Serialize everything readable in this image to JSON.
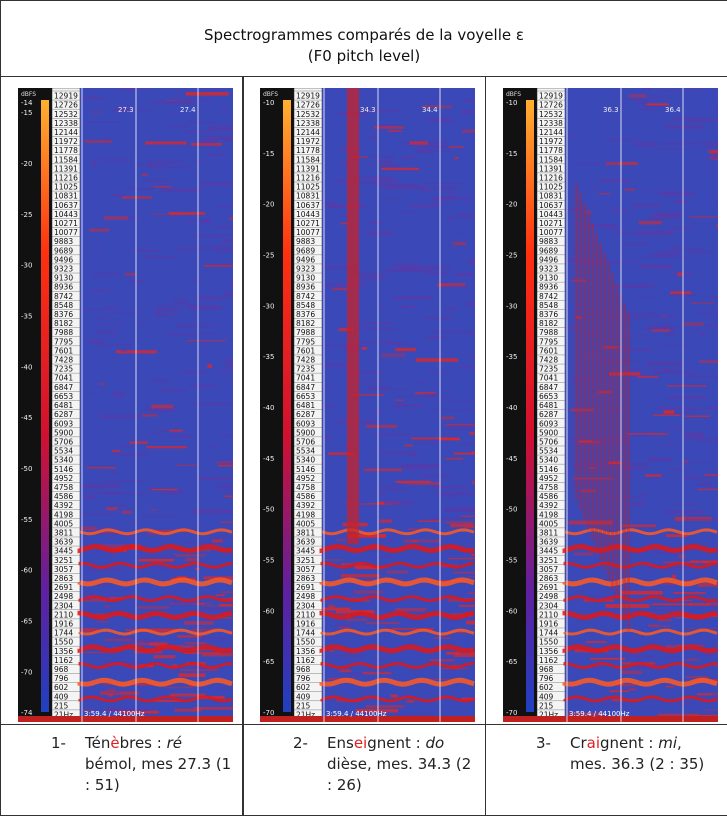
{
  "table": {
    "title": "Spectrogrammes comparés de la voyelle ɛ",
    "subtitle": "(F0 pitch level)",
    "frequency_labels": [
      "12919",
      "12726",
      "12532",
      "12338",
      "12144",
      "11972",
      "11778",
      "11584",
      "11391",
      "11216",
      "11025",
      "10831",
      "10637",
      "10443",
      "10271",
      "10077",
      "9883",
      "9689",
      "9496",
      "9323",
      "9130",
      "8936",
      "8742",
      "8548",
      "8376",
      "8182",
      "7988",
      "7795",
      "7601",
      "7428",
      "7235",
      "7041",
      "6847",
      "6653",
      "6481",
      "6287",
      "6093",
      "5900",
      "5706",
      "5534",
      "5340",
      "5146",
      "4952",
      "4758",
      "4586",
      "4392",
      "4198",
      "4005",
      "3811",
      "3639",
      "3445",
      "3251",
      "3057",
      "2863",
      "2691",
      "2498",
      "2304",
      "2110",
      "1916",
      "1744",
      "1550",
      "1356",
      "1162",
      "968",
      "796",
      "602",
      "409",
      "215",
      "21Hz"
    ],
    "scale_unit": "dBFS",
    "footer": "3:59.4 / 44100Hz",
    "panels": [
      {
        "db_ticks": [
          "-14",
          "-15",
          "-20",
          "-25",
          "-30",
          "-35",
          "-40",
          "-45",
          "-50",
          "-55",
          "-60",
          "-65",
          "-70",
          "-74"
        ],
        "times": [
          "27.3",
          "27.4"
        ],
        "caption": {
          "number": "1-",
          "runs": [
            {
              "text": "Tén",
              "style": "plain"
            },
            {
              "text": "è",
              "style": "red"
            },
            {
              "text": "bres : ",
              "style": "plain"
            },
            {
              "text": "ré",
              "style": "italic"
            },
            {
              "text": " bémol, mes 27.3 (1 : 51)",
              "style": "plain"
            }
          ]
        }
      },
      {
        "db_ticks": [
          "-10",
          "-15",
          "-20",
          "-25",
          "-30",
          "-35",
          "-40",
          "-45",
          "-50",
          "-55",
          "-60",
          "-65",
          "-70"
        ],
        "times": [
          "34.3",
          "34.4"
        ],
        "caption": {
          "number": "2-",
          "runs": [
            {
              "text": "Ens",
              "style": "plain"
            },
            {
              "text": "ei",
              "style": "red"
            },
            {
              "text": "gnent : ",
              "style": "plain"
            },
            {
              "text": "do",
              "style": "italic"
            },
            {
              "text": " dièse, mes. 34.3 (2 : 26)",
              "style": "plain"
            }
          ]
        }
      },
      {
        "db_ticks": [
          "-10",
          "-15",
          "-20",
          "-25",
          "-30",
          "-35",
          "-40",
          "-45",
          "-50",
          "-55",
          "-60",
          "-65",
          "-70"
        ],
        "times": [
          "36.3",
          "36.4"
        ],
        "caption": {
          "number": "3-",
          "runs": [
            {
              "text": "Cr",
              "style": "plain"
            },
            {
              "text": "ai",
              "style": "red"
            },
            {
              "text": "gnent : ",
              "style": "plain"
            },
            {
              "text": "mi",
              "style": "italic"
            },
            {
              "text": ", mes. 36.3 (2 : 35)",
              "style": "plain"
            }
          ]
        }
      }
    ]
  }
}
